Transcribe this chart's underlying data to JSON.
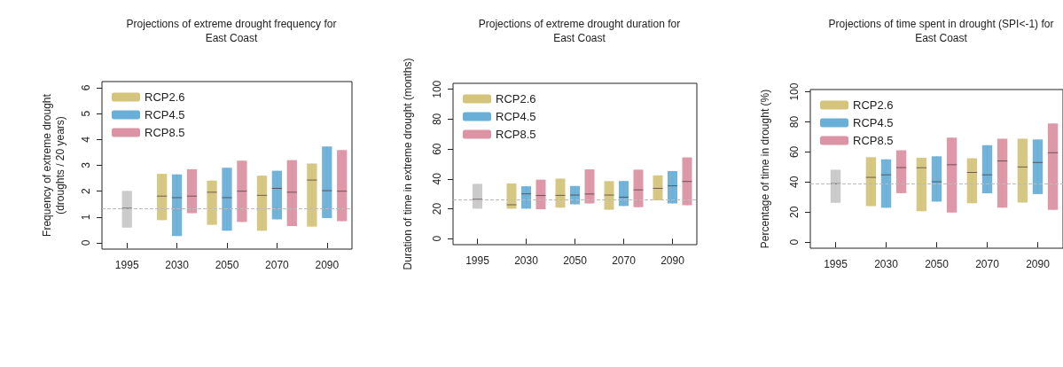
{
  "chart_data": [
    {
      "type": "box",
      "title": "Projections of extreme drought frequency for\nEast Coast",
      "ylabel": "Frequency of extreme drought\n(droughts / 20 years)",
      "categories": [
        "1995",
        "2030",
        "2050",
        "2070",
        "2090"
      ],
      "ylim": [
        -0.24,
        6.24
      ],
      "yticks": [
        0,
        1,
        2,
        3,
        4,
        5,
        6
      ],
      "legend": "top left",
      "grid": false,
      "ref_lines": [
        {
          "axis": "y",
          "value": 1.32,
          "color": "#bbbbbb",
          "line_style": "dashed"
        }
      ],
      "series": [
        {
          "color": "#c8c8c8",
          "boxes": [
            {
              "low": 0.59,
              "q1": 0.59,
              "median": 1.34,
              "q3": 2.01,
              "high": 2.01
            },
            null,
            null,
            null,
            null
          ]
        },
        {
          "name": "RCP2.6",
          "color": "#d4c47c",
          "boxes": [
            null,
            {
              "low": 0.88,
              "q1": 0.88,
              "median": 1.81,
              "q3": 2.67,
              "high": 2.67
            },
            {
              "low": 0.7,
              "q1": 0.7,
              "median": 1.96,
              "q3": 2.41,
              "high": 2.41
            },
            {
              "low": 0.47,
              "q1": 0.47,
              "median": 1.84,
              "q3": 2.6,
              "high": 2.6
            },
            {
              "low": 0.63,
              "q1": 0.63,
              "median": 2.43,
              "q3": 3.07,
              "high": 3.07
            }
          ]
        },
        {
          "name": "RCP4.5",
          "color": "#6aafd8",
          "boxes": [
            null,
            {
              "low": 0.27,
              "q1": 0.27,
              "median": 1.75,
              "q3": 2.65,
              "high": 2.65
            },
            {
              "low": 0.47,
              "q1": 0.47,
              "median": 1.75,
              "q3": 2.91,
              "high": 2.91
            },
            {
              "low": 0.91,
              "q1": 0.91,
              "median": 2.11,
              "q3": 2.79,
              "high": 2.79
            },
            {
              "low": 0.96,
              "q1": 0.96,
              "median": 2.02,
              "q3": 3.73,
              "high": 3.73
            }
          ]
        },
        {
          "name": "RCP8.5",
          "color": "#dc94a4",
          "boxes": [
            null,
            {
              "low": 1.15,
              "q1": 1.15,
              "median": 1.81,
              "q3": 2.85,
              "high": 2.85
            },
            {
              "low": 0.81,
              "q1": 0.81,
              "median": 2.0,
              "q3": 3.18,
              "high": 3.18
            },
            {
              "low": 0.65,
              "q1": 0.65,
              "median": 1.96,
              "q3": 3.2,
              "high": 3.2
            },
            {
              "low": 0.84,
              "q1": 0.84,
              "median": 2.0,
              "q3": 3.59,
              "high": 3.59
            }
          ]
        }
      ]
    },
    {
      "type": "box",
      "title": "Projections of extreme drought duration for\nEast Coast",
      "ylabel": "Duration of time in extreme drought (months)",
      "categories": [
        "1995",
        "2030",
        "2050",
        "2070",
        "2090"
      ],
      "ylim": [
        -4,
        104
      ],
      "yticks": [
        0,
        20,
        40,
        60,
        80,
        100
      ],
      "legend": "top left",
      "grid": false,
      "ref_lines": [
        {
          "axis": "y",
          "value": 26.1,
          "color": "#bbbbbb",
          "line_style": "dashed"
        }
      ],
      "series": [
        {
          "color": "#c8c8c8",
          "boxes": [
            {
              "low": 20.1,
              "q1": 20.1,
              "median": 26.4,
              "q3": 36.7,
              "high": 36.7
            },
            null,
            null,
            null,
            null
          ]
        },
        {
          "name": "RCP2.6",
          "color": "#d4c47c",
          "boxes": [
            null,
            {
              "low": 20.1,
              "q1": 20.1,
              "median": 22.7,
              "q3": 37.0,
              "high": 37.0
            },
            {
              "low": 20.8,
              "q1": 20.8,
              "median": 29.0,
              "q3": 40.2,
              "high": 40.2
            },
            {
              "low": 19.4,
              "q1": 19.4,
              "median": 29.2,
              "q3": 38.5,
              "high": 38.5
            },
            {
              "low": 25.7,
              "q1": 25.7,
              "median": 33.7,
              "q3": 42.4,
              "high": 42.4
            }
          ]
        },
        {
          "name": "RCP4.5",
          "color": "#6aafd8",
          "boxes": [
            null,
            {
              "low": 20.1,
              "q1": 20.1,
              "median": 30.0,
              "q3": 35.1,
              "high": 35.1
            },
            {
              "low": 23.0,
              "q1": 23.0,
              "median": 29.2,
              "q3": 35.3,
              "high": 35.3
            },
            {
              "low": 21.9,
              "q1": 21.9,
              "median": 27.8,
              "q3": 38.6,
              "high": 38.6
            },
            {
              "low": 23.6,
              "q1": 23.6,
              "median": 35.4,
              "q3": 45.3,
              "high": 45.3
            }
          ]
        },
        {
          "name": "RCP8.5",
          "color": "#dc94a4",
          "boxes": [
            null,
            {
              "low": 19.7,
              "q1": 19.7,
              "median": 28.9,
              "q3": 39.5,
              "high": 39.5
            },
            {
              "low": 23.6,
              "q1": 23.6,
              "median": 29.9,
              "q3": 46.4,
              "high": 46.4
            },
            {
              "low": 21.1,
              "q1": 21.1,
              "median": 32.7,
              "q3": 46.2,
              "high": 46.2
            },
            {
              "low": 22.4,
              "q1": 22.4,
              "median": 38.3,
              "q3": 54.4,
              "high": 54.4
            }
          ]
        }
      ]
    },
    {
      "type": "box",
      "title": "Projections of time spent in drought (SPI<-1) for\nEast Coast",
      "ylabel": "Percentage of time in drought (%)",
      "categories": [
        "1995",
        "2030",
        "2050",
        "2070",
        "2090"
      ],
      "ylim": [
        -4,
        101.5
      ],
      "yticks": [
        0,
        20,
        40,
        60,
        80,
        100
      ],
      "legend": "top left",
      "grid": false,
      "ref_lines": [
        {
          "axis": "y",
          "value": 38.6,
          "color": "#bbbbbb",
          "line_style": "dashed"
        }
      ],
      "series": [
        {
          "color": "#c8c8c8",
          "boxes": [
            {
              "low": 26.2,
              "q1": 26.2,
              "median": 38.9,
              "q3": 48.1,
              "high": 48.1
            },
            null,
            null,
            null,
            null
          ]
        },
        {
          "name": "RCP2.6",
          "color": "#d4c47c",
          "boxes": [
            null,
            {
              "low": 24.0,
              "q1": 24.0,
              "median": 43.1,
              "q3": 56.5,
              "high": 56.5
            },
            {
              "low": 20.6,
              "q1": 20.6,
              "median": 49.5,
              "q3": 56.1,
              "high": 56.1
            },
            {
              "low": 25.9,
              "q1": 25.9,
              "median": 46.4,
              "q3": 55.8,
              "high": 55.8
            },
            {
              "low": 26.3,
              "q1": 26.3,
              "median": 50.0,
              "q3": 68.8,
              "high": 68.8
            }
          ]
        },
        {
          "name": "RCP4.5",
          "color": "#6aafd8",
          "boxes": [
            null,
            {
              "low": 22.9,
              "q1": 22.9,
              "median": 44.8,
              "q3": 55.1,
              "high": 55.1
            },
            {
              "low": 27.0,
              "q1": 27.0,
              "median": 40.2,
              "q3": 57.1,
              "high": 57.1
            },
            {
              "low": 32.5,
              "q1": 32.5,
              "median": 44.8,
              "q3": 64.5,
              "high": 64.5
            },
            {
              "low": 32.0,
              "q1": 32.0,
              "median": 53.0,
              "q3": 68.3,
              "high": 68.3
            }
          ]
        },
        {
          "name": "RCP8.5",
          "color": "#dc94a4",
          "boxes": [
            null,
            {
              "low": 32.6,
              "q1": 32.6,
              "median": 49.6,
              "q3": 61.1,
              "high": 61.1
            },
            {
              "low": 19.7,
              "q1": 19.7,
              "median": 51.5,
              "q3": 69.5,
              "high": 69.5
            },
            {
              "low": 22.9,
              "q1": 22.9,
              "median": 54.0,
              "q3": 68.8,
              "high": 68.8
            },
            {
              "low": 21.5,
              "q1": 21.5,
              "median": 59.5,
              "q3": 79.0,
              "high": 79.0
            }
          ]
        }
      ]
    }
  ]
}
